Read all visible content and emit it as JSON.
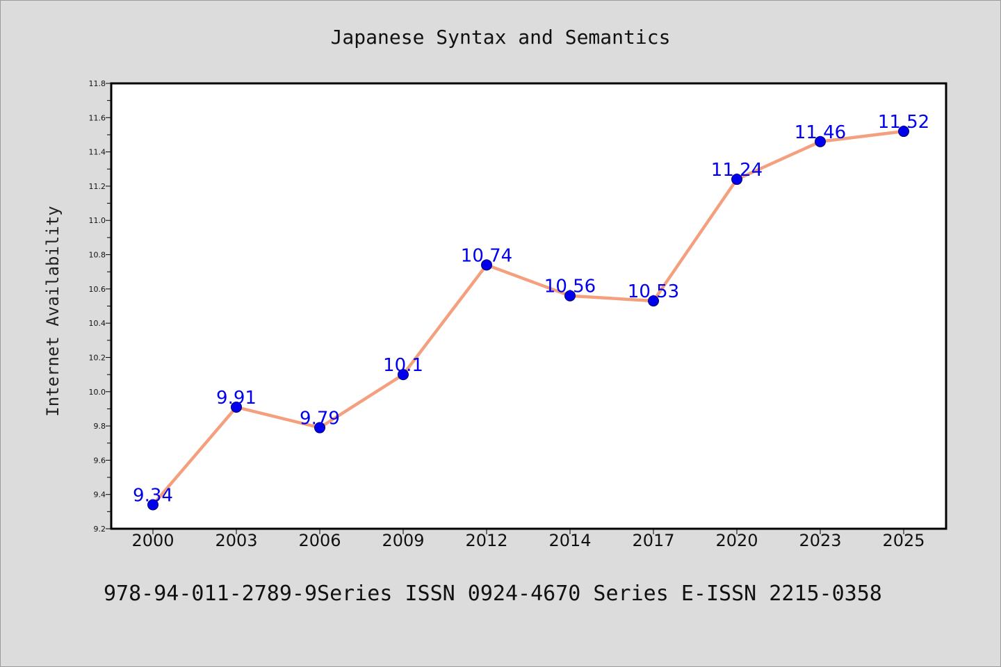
{
  "chart_data": {
    "type": "line",
    "title": "Japanese Syntax and Semantics",
    "xlabel": "",
    "ylabel": "Internet Availability",
    "categories": [
      "2000",
      "2003",
      "2006",
      "2009",
      "2012",
      "2014",
      "2017",
      "2020",
      "2023",
      "2025"
    ],
    "series": [
      {
        "values": [
          9.34,
          9.91,
          9.79,
          10.1,
          10.74,
          10.56,
          10.53,
          11.24,
          11.46,
          11.52
        ],
        "labels": [
          "9.34",
          "9.91",
          "9.79",
          "10.1",
          "10.74",
          "10.56",
          "10.53",
          "11.24",
          "11.46",
          "11.52"
        ]
      }
    ],
    "ylim": [
      9.2,
      11.8
    ],
    "yticks": [
      "9.2",
      "9.4",
      "9.6",
      "9.8",
      "10.0",
      "10.2",
      "10.4",
      "10.6",
      "10.8",
      "11.0",
      "11.2",
      "11.4",
      "11.6",
      "11.8"
    ],
    "grid": false,
    "legend": "none",
    "colors": {
      "line": "#f4a07e",
      "marker": "#0000ee",
      "label": "#0000ee",
      "plot_bg": "#ffffff",
      "frame": "#000000",
      "page_bg": "#dcdcdc"
    }
  },
  "footer": {
    "text": "978-94-011-2789-9Series ISSN 0924-4670 Series E-ISSN 2215-0358"
  }
}
